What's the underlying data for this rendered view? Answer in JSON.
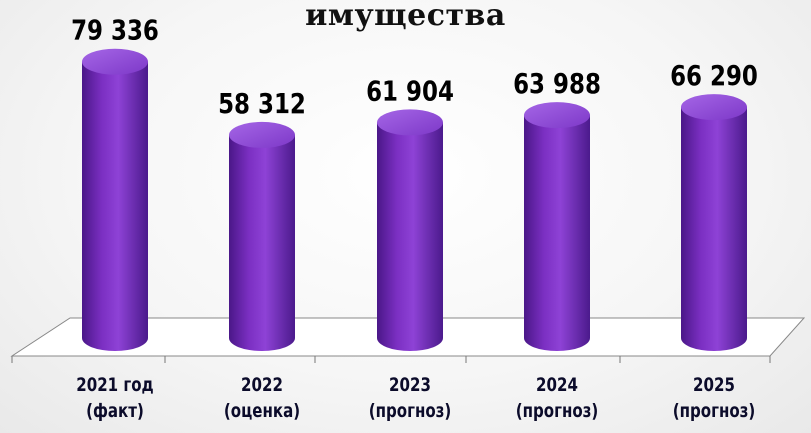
{
  "title": "имущества",
  "chart_data": {
    "type": "bar",
    "style": "3d-cylinder",
    "bar_color": "#7a2fc0",
    "title": "имущества",
    "categories": [
      {
        "line1": "2021 год",
        "line2": "(факт)"
      },
      {
        "line1": "2022",
        "line2": "(оценка)"
      },
      {
        "line1": "2023",
        "line2": "(прогноз)"
      },
      {
        "line1": "2024",
        "line2": "(прогноз)"
      },
      {
        "line1": "2025",
        "line2": "(прогноз)"
      }
    ],
    "values": [
      79336,
      58312,
      61904,
      63988,
      66290
    ],
    "value_labels": [
      "79 336",
      "58 312",
      "61 904",
      "63 988",
      "66 290"
    ],
    "ylim": [
      0,
      85000
    ],
    "grid": false,
    "legend": "none"
  }
}
